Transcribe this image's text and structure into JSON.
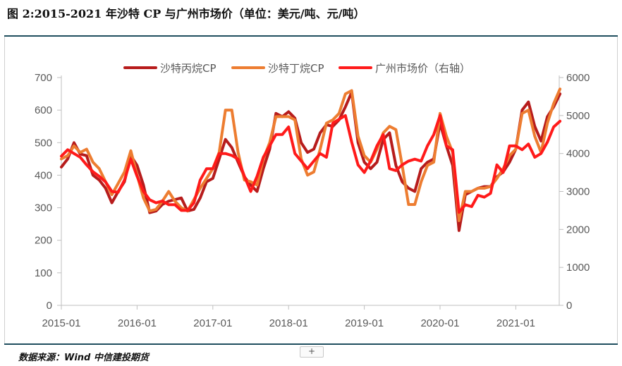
{
  "header": {
    "title": "图 2:2015-2021 年沙特 CP 与广州市场价（单位：美元/吨、元/吨）"
  },
  "footer": {
    "source": "数据来源：Wind  中信建投期货",
    "expand_label": "+"
  },
  "colors": {
    "propane": "#b71c1c",
    "butane": "#ed7d31",
    "guangzhou": "#ff1a1a",
    "rule": "#1f4e5e"
  },
  "chart_data": {
    "type": "line",
    "x_tick_labels": [
      "2015-01",
      "2016-01",
      "2017-01",
      "2018-01",
      "2019-01",
      "2020-01",
      "2021-01"
    ],
    "y_left": {
      "ticks": [
        0,
        100,
        200,
        300,
        400,
        500,
        600,
        700
      ],
      "ylim": [
        0,
        700
      ]
    },
    "y_right": {
      "ticks": [
        0,
        1000,
        2000,
        3000,
        4000,
        5000,
        6000
      ],
      "ylim": [
        0,
        6000
      ]
    },
    "xlim": [
      "2015-01",
      "2021-08"
    ],
    "x": [
      "2015-01",
      "2015-02",
      "2015-03",
      "2015-04",
      "2015-05",
      "2015-06",
      "2015-07",
      "2015-08",
      "2015-09",
      "2015-10",
      "2015-11",
      "2015-12",
      "2016-01",
      "2016-02",
      "2016-03",
      "2016-04",
      "2016-05",
      "2016-06",
      "2016-07",
      "2016-08",
      "2016-09",
      "2016-10",
      "2016-11",
      "2016-12",
      "2017-01",
      "2017-02",
      "2017-03",
      "2017-04",
      "2017-05",
      "2017-06",
      "2017-07",
      "2017-08",
      "2017-09",
      "2017-10",
      "2017-11",
      "2017-12",
      "2018-01",
      "2018-02",
      "2018-03",
      "2018-04",
      "2018-05",
      "2018-06",
      "2018-07",
      "2018-08",
      "2018-09",
      "2018-10",
      "2018-11",
      "2018-12",
      "2019-01",
      "2019-02",
      "2019-03",
      "2019-04",
      "2019-05",
      "2019-06",
      "2019-07",
      "2019-08",
      "2019-09",
      "2019-10",
      "2019-11",
      "2019-12",
      "2020-01",
      "2020-02",
      "2020-03",
      "2020-04",
      "2020-05",
      "2020-06",
      "2020-07",
      "2020-08",
      "2020-09",
      "2020-10",
      "2020-11",
      "2020-12",
      "2021-01",
      "2021-02",
      "2021-03",
      "2021-04",
      "2021-05",
      "2021-06",
      "2021-07",
      "2021-08"
    ],
    "legend_position": "top-center",
    "grid": false,
    "series": [
      {
        "name": "沙特丙烷CP",
        "axis": "left",
        "values": [
          425,
          450,
          500,
          465,
          460,
          400,
          385,
          360,
          315,
          350,
          380,
          460,
          430,
          370,
          285,
          290,
          310,
          320,
          325,
          330,
          290,
          295,
          330,
          380,
          390,
          450,
          510,
          485,
          440,
          395,
          370,
          350,
          420,
          480,
          590,
          580,
          595,
          575,
          500,
          470,
          480,
          530,
          555,
          550,
          570,
          610,
          655,
          500,
          440,
          420,
          440,
          510,
          530,
          430,
          380,
          360,
          350,
          420,
          440,
          450,
          560,
          490,
          430,
          230,
          340,
          350,
          360,
          365,
          365,
          395,
          410,
          440,
          480,
          600,
          625,
          550,
          505,
          580,
          610,
          650
        ]
      },
      {
        "name": "沙特丁烷CP",
        "axis": "left",
        "values": [
          450,
          460,
          490,
          470,
          480,
          440,
          420,
          380,
          340,
          375,
          410,
          475,
          400,
          330,
          290,
          295,
          320,
          350,
          320,
          300,
          290,
          325,
          360,
          390,
          420,
          470,
          600,
          600,
          470,
          385,
          380,
          370,
          450,
          500,
          580,
          580,
          580,
          570,
          450,
          400,
          410,
          480,
          560,
          570,
          590,
          650,
          660,
          520,
          460,
          440,
          480,
          530,
          550,
          540,
          430,
          310,
          310,
          380,
          430,
          440,
          590,
          520,
          470,
          260,
          350,
          350,
          360,
          360,
          365,
          390,
          420,
          460,
          480,
          590,
          600,
          520,
          470,
          560,
          620,
          665
        ]
      },
      {
        "name": "广州市场价（右轴）",
        "axis": "right",
        "values": [
          3930,
          4100,
          4000,
          3900,
          3700,
          3520,
          3400,
          3250,
          3000,
          2980,
          3300,
          3850,
          3400,
          3000,
          2780,
          2700,
          2750,
          2650,
          2650,
          2500,
          2500,
          2700,
          3300,
          3600,
          3600,
          4000,
          4000,
          3950,
          3850,
          3400,
          3000,
          3400,
          3900,
          4200,
          4500,
          4500,
          4700,
          4000,
          3800,
          3600,
          3800,
          4000,
          3900,
          4800,
          4900,
          5000,
          4300,
          3700,
          3500,
          3800,
          4200,
          4500,
          3600,
          3550,
          3700,
          3800,
          3850,
          3800,
          4200,
          4500,
          5000,
          4200,
          4100,
          2450,
          2650,
          2600,
          2900,
          2850,
          2950,
          3700,
          3500,
          4200,
          4200,
          4100,
          4250,
          3900,
          4000,
          4300,
          4700,
          4850
        ]
      }
    ]
  }
}
